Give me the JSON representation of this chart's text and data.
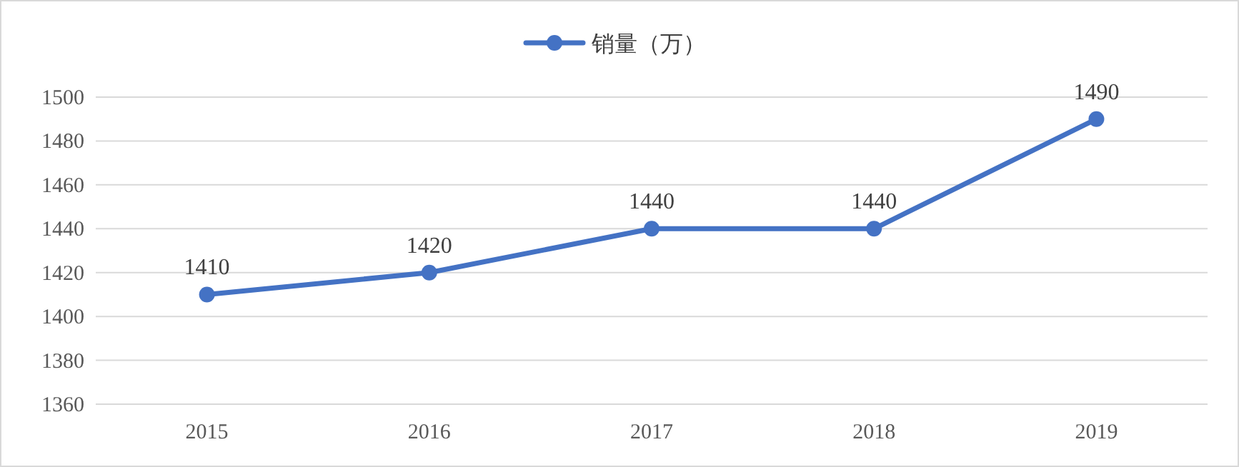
{
  "chart_data": {
    "type": "line",
    "categories": [
      "2015",
      "2016",
      "2017",
      "2018",
      "2019"
    ],
    "series": [
      {
        "name": "销量（万）",
        "color": "#4472c4",
        "values": [
          1410,
          1420,
          1440,
          1440,
          1490
        ]
      }
    ],
    "ylim": [
      1360,
      1500
    ],
    "yticks": [
      1360,
      1380,
      1400,
      1420,
      1440,
      1460,
      1480,
      1500
    ],
    "grid": "y",
    "legend": "top",
    "marker": "circle",
    "line_style": "solid",
    "data_labels": true
  }
}
